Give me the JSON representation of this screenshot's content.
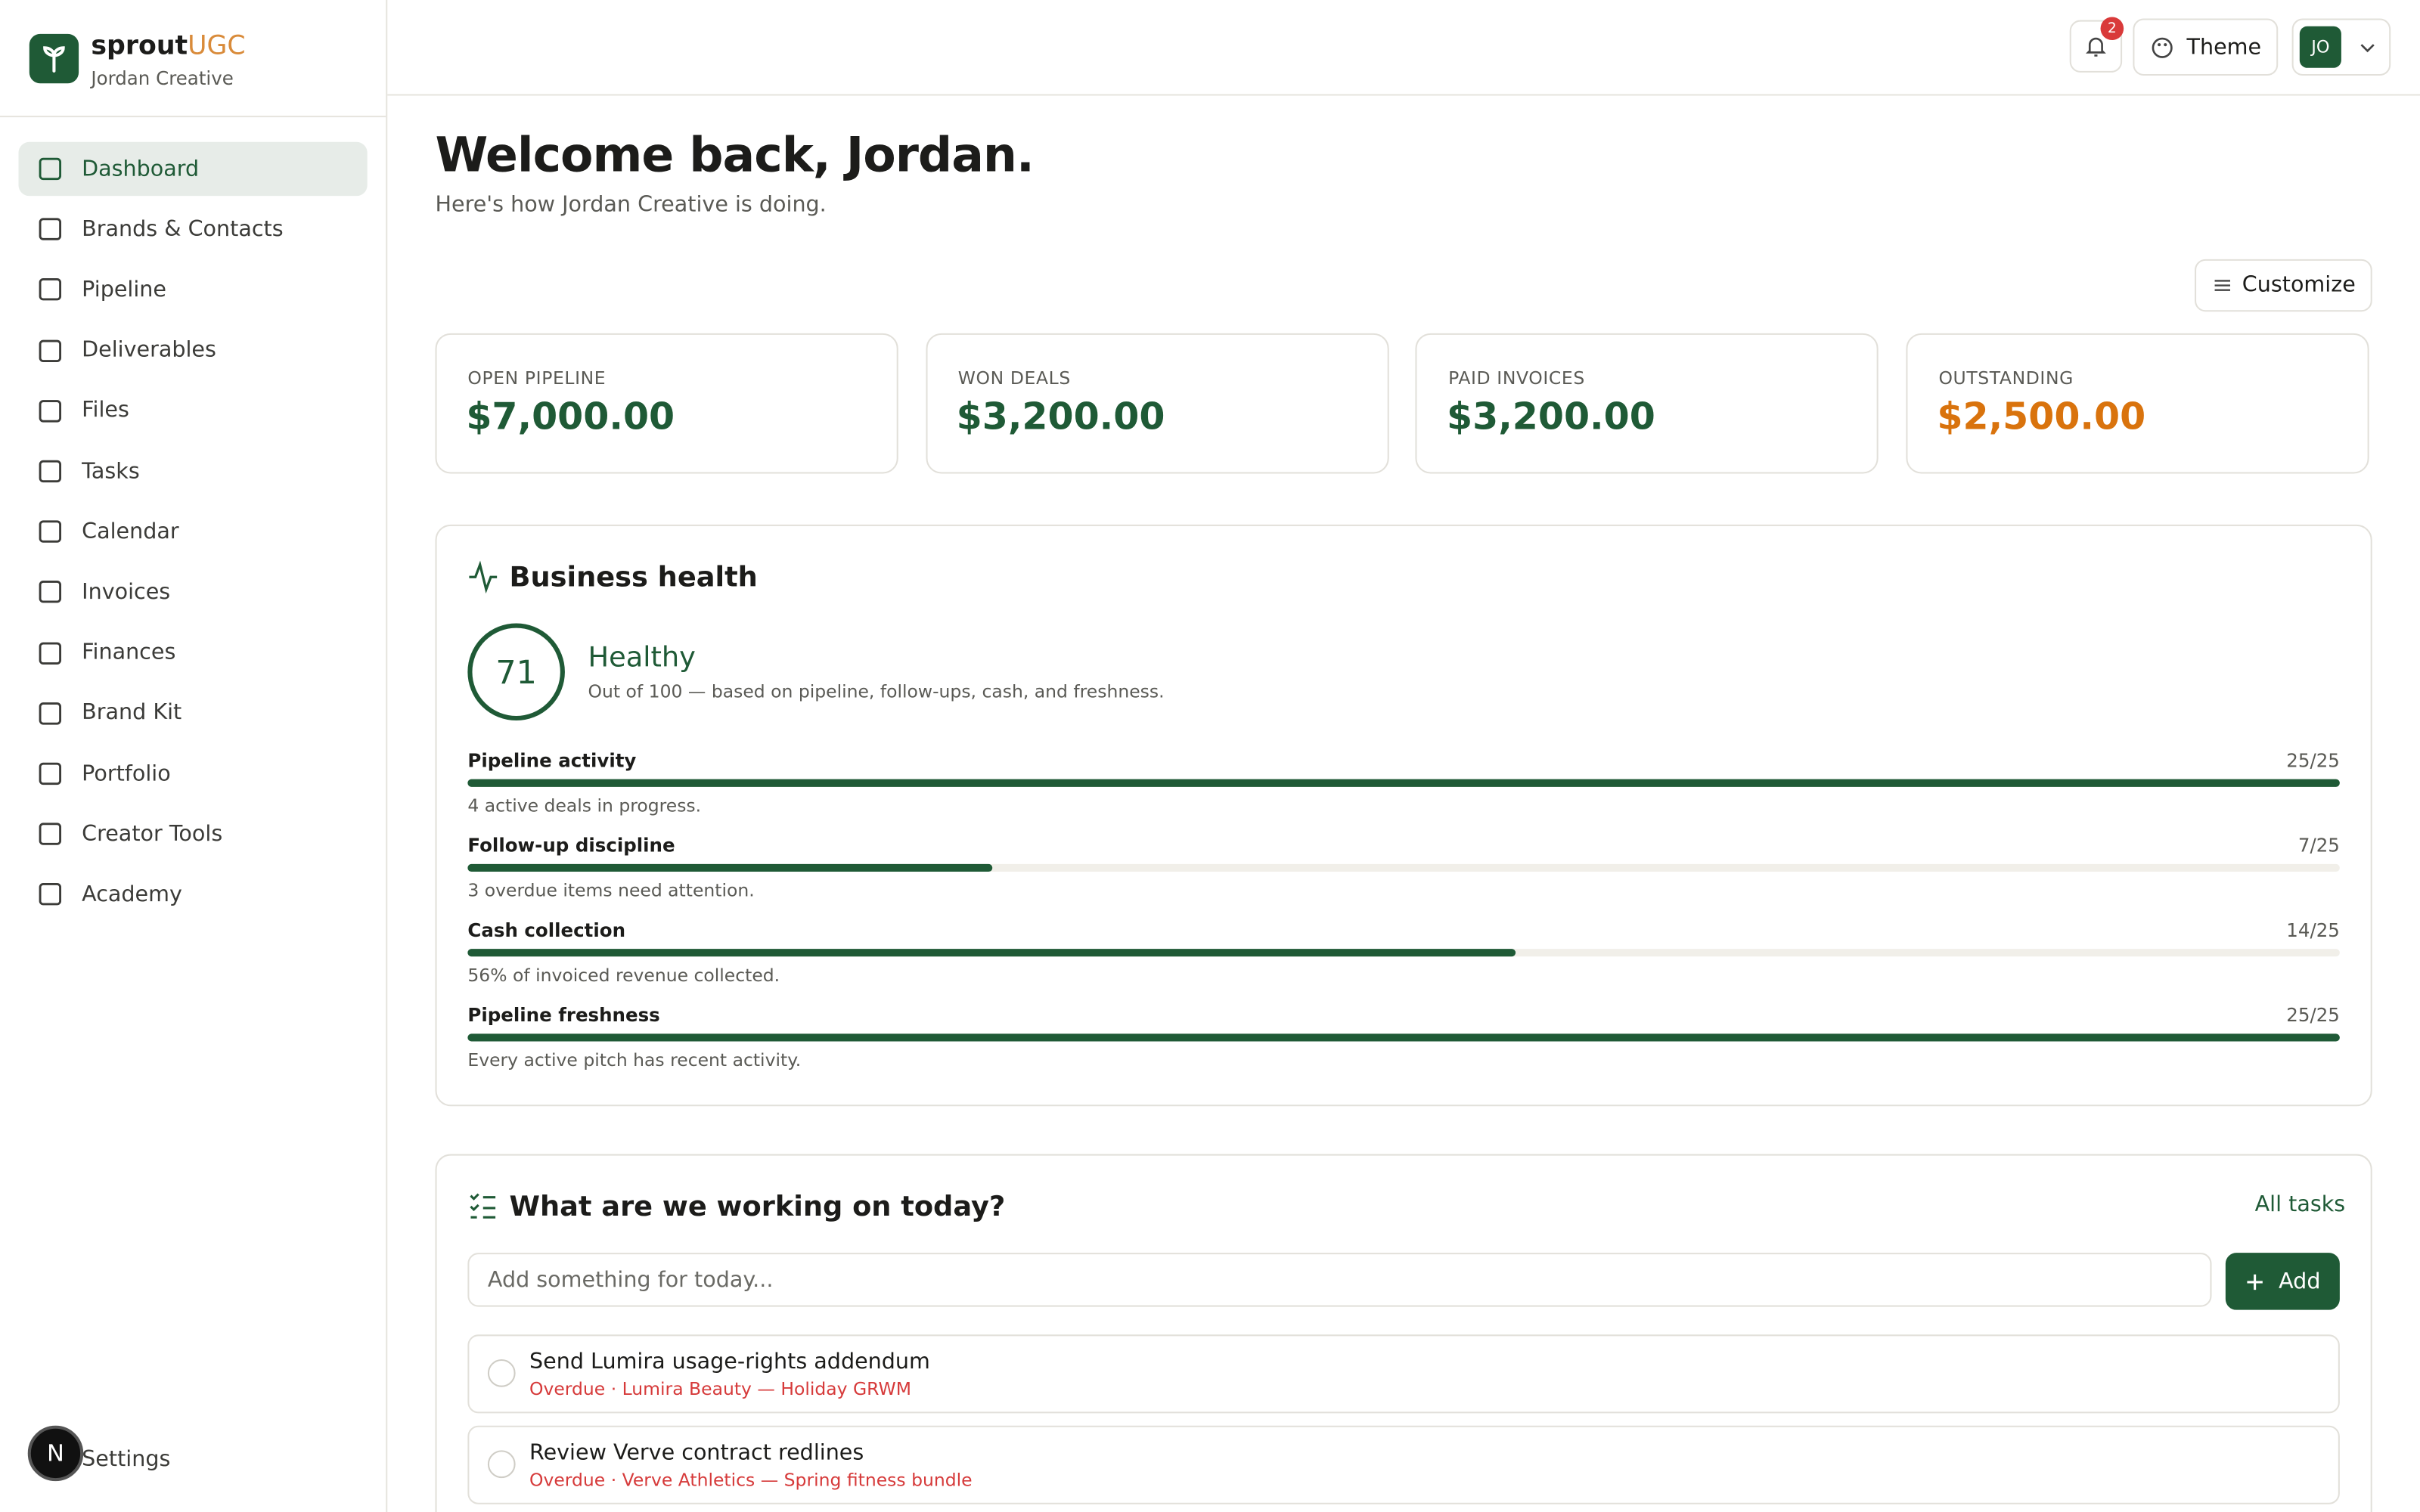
{
  "sidebar": {
    "brand_main": "sprout",
    "brand_accent": "UGC",
    "workspace": "Jordan Creative",
    "nav": [
      "Dashboard",
      "Brands & Contacts",
      "Pipeline",
      "Deliverables",
      "Files",
      "Tasks",
      "Calendar",
      "Invoices",
      "Finances",
      "Brand Kit",
      "Portfolio",
      "Creator Tools",
      "Academy"
    ],
    "active": 0,
    "settings": "Settings",
    "dev_indicator": "N"
  },
  "topbar": {
    "notifications": "2",
    "theme": "Theme",
    "avatar": "JO"
  },
  "header": {
    "title": "Welcome back, Jordan.",
    "subtitle": "Here's how Jordan Creative is doing.",
    "customize": "Customize"
  },
  "stats": [
    {
      "label": "OPEN PIPELINE",
      "value": "$7,000.00"
    },
    {
      "label": "WON DEALS",
      "value": "$3,200.00"
    },
    {
      "label": "PAID INVOICES",
      "value": "$3,200.00"
    },
    {
      "label": "OUTSTANDING",
      "value": "$2,500.00"
    }
  ],
  "health": {
    "title": "Business health",
    "score": "71",
    "status": "Healthy",
    "note": "Out of 100 — based on pipeline, follow-ups, cash, and freshness.",
    "factors": [
      {
        "name": "Pipeline activity",
        "score": {
          "value": 25,
          "max": 25,
          "label": "25/25"
        },
        "detail": "4 active deals in progress."
      },
      {
        "name": "Follow-up discipline",
        "score": {
          "value": 7,
          "max": 25,
          "label": "7/25"
        },
        "detail": "3 overdue items need attention."
      },
      {
        "name": "Cash collection",
        "score": {
          "value": 14,
          "max": 25,
          "label": "14/25"
        },
        "detail": "56% of invoiced revenue collected."
      },
      {
        "name": "Pipeline freshness",
        "score": {
          "value": 25,
          "max": 25,
          "label": "25/25"
        },
        "detail": "Every active pitch has recent activity."
      }
    ]
  },
  "tasks": {
    "title": "What are we working on today?",
    "all_link": "All tasks",
    "placeholder": "Add something for today...",
    "add": "Add",
    "items": [
      {
        "title": "Send Lumira usage-rights addendum",
        "meta": "Overdue · Lumira Beauty — Holiday GRWM"
      },
      {
        "title": "Review Verve contract redlines",
        "meta": "Overdue · Verve Athletics — Spring fitness bundle"
      }
    ]
  }
}
